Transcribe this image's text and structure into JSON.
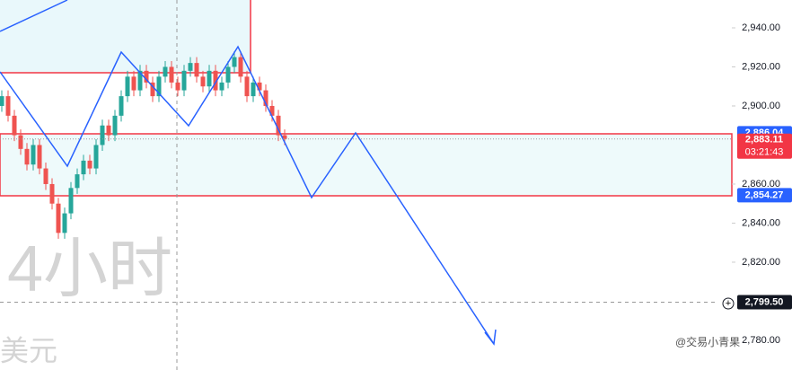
{
  "chart_data": {
    "type": "candlestick",
    "watermark": "4小时",
    "currency": "美元",
    "credit": "@交易小青果",
    "open": [
      2900,
      2905,
      2895,
      2885,
      2878,
      2870,
      2880,
      2868,
      2860,
      2850,
      2835,
      2845,
      2858,
      2865,
      2872,
      2868,
      2880,
      2890,
      2885,
      2895,
      2905,
      2915,
      2908,
      2918,
      2912,
      2905,
      2915,
      2920,
      2912,
      2908,
      2918,
      2922,
      2915,
      2910,
      2918,
      2908,
      2912,
      2920,
      2925,
      2915,
      2905,
      2912,
      2908,
      2900,
      2895,
      2885
    ],
    "high": [
      2908,
      2908,
      2898,
      2888,
      2881,
      2883,
      2883,
      2871,
      2863,
      2853,
      2848,
      2861,
      2868,
      2875,
      2875,
      2883,
      2893,
      2893,
      2898,
      2908,
      2918,
      2918,
      2921,
      2921,
      2915,
      2918,
      2923,
      2923,
      2915,
      2921,
      2925,
      2925,
      2918,
      2921,
      2921,
      2915,
      2923,
      2928,
      2928,
      2918,
      2915,
      2915,
      2911,
      2903,
      2898,
      2888
    ],
    "low": [
      2897,
      2892,
      2882,
      2875,
      2867,
      2867,
      2865,
      2857,
      2847,
      2832,
      2832,
      2842,
      2855,
      2862,
      2865,
      2865,
      2877,
      2882,
      2882,
      2892,
      2902,
      2905,
      2905,
      2909,
      2902,
      2902,
      2912,
      2909,
      2905,
      2905,
      2915,
      2912,
      2907,
      2907,
      2905,
      2905,
      2909,
      2917,
      2912,
      2902,
      2902,
      2905,
      2897,
      2892,
      2882,
      2880
    ],
    "close": [
      2905,
      2895,
      2885,
      2878,
      2870,
      2880,
      2868,
      2860,
      2850,
      2835,
      2845,
      2858,
      2865,
      2872,
      2868,
      2880,
      2890,
      2885,
      2895,
      2905,
      2915,
      2908,
      2918,
      2912,
      2905,
      2915,
      2920,
      2912,
      2908,
      2918,
      2922,
      2915,
      2910,
      2918,
      2908,
      2912,
      2920,
      2925,
      2915,
      2905,
      2912,
      2908,
      2900,
      2895,
      2885,
      2883.11
    ],
    "up_color": "#26a69a",
    "down_color": "#ef5350",
    "ylim": [
      2764.8,
      2954.25
    ],
    "yticks": [
      {
        "value": 2940,
        "label": "2,940.00"
      },
      {
        "value": 2920,
        "label": "2,920.00"
      },
      {
        "value": 2900,
        "label": "2,900.00"
      },
      {
        "value": 2860,
        "label": "2,860.00"
      },
      {
        "value": 2840,
        "label": "2,840.00"
      },
      {
        "value": 2820,
        "label": "2,820.00"
      },
      {
        "value": 2780,
        "label": "2,780.00"
      }
    ],
    "price_labels": [
      {
        "value": 2886.04,
        "label": "2,886.04",
        "color": "#2962ff"
      },
      {
        "value": 2883.11,
        "label": "2,883.11",
        "color": "#f23645"
      },
      {
        "value": 2854.27,
        "label": "2,854.27",
        "color": "#2962ff"
      },
      {
        "value": 2799.5,
        "label": "2,799.50",
        "color": "#131722"
      }
    ],
    "countdown": "03:21:43"
  }
}
